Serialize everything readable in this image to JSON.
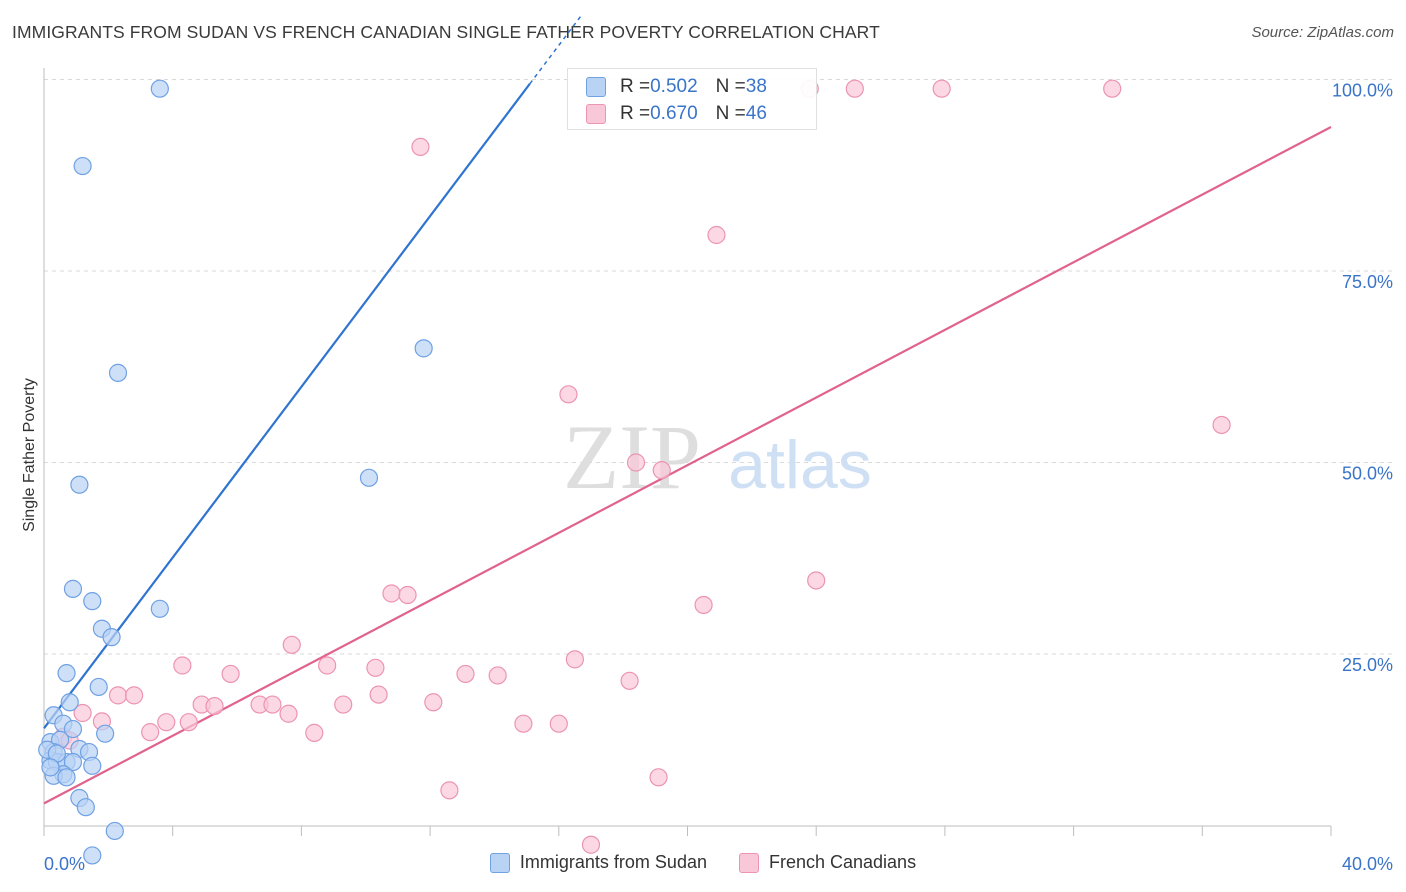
{
  "title": "IMMIGRANTS FROM SUDAN VS FRENCH CANADIAN SINGLE FATHER POVERTY CORRELATION CHART",
  "source": "Source: ZipAtlas.com",
  "watermark": {
    "zip": "ZIP",
    "atlas": "atlas"
  },
  "colors": {
    "blue_fill": "#b9d3f5",
    "blue_stroke": "#6fa1e3",
    "blue_line": "#2f74d0",
    "pink_fill": "#f9c8d8",
    "pink_stroke": "#ec94b2",
    "pink_line": "#e0628d",
    "tick_label": "#3a74c9",
    "grid": "#d9d9d9"
  },
  "stats": {
    "series1": {
      "r_label": "R = ",
      "r_value": "0.502",
      "n_label": "N = ",
      "n_value": "38"
    },
    "series2": {
      "r_label": "R = ",
      "r_value": "0.670",
      "n_label": "N = ",
      "n_value": "46"
    }
  },
  "legend": {
    "series1": "Immigrants from Sudan",
    "series2": "French Canadians"
  },
  "chart_data": {
    "type": "scatter",
    "title": "IMMIGRANTS FROM SUDAN VS FRENCH CANADIAN SINGLE FATHER POVERTY CORRELATION CHART",
    "xlabel": "",
    "ylabel": "Single Father Poverty",
    "xlim": [
      0,
      40
    ],
    "ylim": [
      0,
      100
    ],
    "x_tick_labels": [
      "0.0%",
      "40.0%"
    ],
    "x_ticks": [
      0,
      4,
      8,
      12,
      16,
      20,
      24,
      28,
      32,
      36,
      40
    ],
    "y_ticks": [
      25,
      50,
      75,
      100
    ],
    "y_tick_labels": [
      "25.0%",
      "50.0%",
      "75.0%",
      "100.0%"
    ],
    "series": [
      {
        "name": "Immigrants from Sudan",
        "points": [
          [
            3.6,
            98.8
          ],
          [
            1.2,
            88.7
          ],
          [
            2.3,
            61.7
          ],
          [
            1.1,
            47.1
          ],
          [
            11.8,
            64.9
          ],
          [
            10.1,
            48.0
          ],
          [
            0.9,
            33.5
          ],
          [
            1.5,
            31.9
          ],
          [
            3.6,
            30.9
          ],
          [
            1.8,
            28.3
          ],
          [
            2.1,
            27.2
          ],
          [
            0.7,
            22.5
          ],
          [
            1.7,
            20.7
          ],
          [
            0.8,
            18.7
          ],
          [
            0.3,
            17.0
          ],
          [
            0.6,
            15.9
          ],
          [
            0.9,
            15.2
          ],
          [
            1.9,
            14.6
          ],
          [
            0.2,
            13.5
          ],
          [
            0.5,
            13.8
          ],
          [
            0.3,
            12.2
          ],
          [
            1.1,
            12.6
          ],
          [
            1.4,
            12.2
          ],
          [
            0.2,
            11.1
          ],
          [
            0.4,
            10.9
          ],
          [
            0.7,
            10.9
          ],
          [
            0.9,
            10.9
          ],
          [
            1.5,
            10.4
          ],
          [
            0.6,
            9.3
          ],
          [
            0.3,
            9.1
          ],
          [
            0.7,
            8.9
          ],
          [
            1.1,
            6.2
          ],
          [
            1.3,
            5.0
          ],
          [
            2.2,
            1.9
          ],
          [
            1.5,
            -1.3
          ],
          [
            0.1,
            12.5
          ],
          [
            0.4,
            12.0
          ],
          [
            0.2,
            10.2
          ]
        ],
        "trendline": {
          "x0": 0,
          "y0": 15.3,
          "x1": 15.2,
          "y1": 100
        }
      },
      {
        "name": "French Canadians",
        "points": [
          [
            23.8,
            98.8
          ],
          [
            25.2,
            98.8
          ],
          [
            27.9,
            98.8
          ],
          [
            33.2,
            98.8
          ],
          [
            11.7,
            91.2
          ],
          [
            20.9,
            79.7
          ],
          [
            16.3,
            58.9
          ],
          [
            36.6,
            54.9
          ],
          [
            18.4,
            50.0
          ],
          [
            19.2,
            49.0
          ],
          [
            24.0,
            34.6
          ],
          [
            20.5,
            31.4
          ],
          [
            10.8,
            32.9
          ],
          [
            11.3,
            32.7
          ],
          [
            7.7,
            26.2
          ],
          [
            4.3,
            23.5
          ],
          [
            8.8,
            23.5
          ],
          [
            10.3,
            23.2
          ],
          [
            16.5,
            24.3
          ],
          [
            5.8,
            22.4
          ],
          [
            13.1,
            22.4
          ],
          [
            14.1,
            22.2
          ],
          [
            18.2,
            21.5
          ],
          [
            2.3,
            19.6
          ],
          [
            2.8,
            19.6
          ],
          [
            10.4,
            19.7
          ],
          [
            6.7,
            18.4
          ],
          [
            12.1,
            18.7
          ],
          [
            4.9,
            18.4
          ],
          [
            7.1,
            18.4
          ],
          [
            9.3,
            18.4
          ],
          [
            5.3,
            18.2
          ],
          [
            7.6,
            17.2
          ],
          [
            3.8,
            16.1
          ],
          [
            1.2,
            17.3
          ],
          [
            1.8,
            16.2
          ],
          [
            4.5,
            16.1
          ],
          [
            14.9,
            15.9
          ],
          [
            16.0,
            15.9
          ],
          [
            3.3,
            14.8
          ],
          [
            8.4,
            14.7
          ],
          [
            0.6,
            14.2
          ],
          [
            0.8,
            13.7
          ],
          [
            19.1,
            8.9
          ],
          [
            12.6,
            7.2
          ],
          [
            17.0,
            0.1
          ]
        ],
        "trendline": {
          "x0": 0,
          "y0": 5.5,
          "x1": 40,
          "y1": 93.8
        }
      }
    ]
  }
}
